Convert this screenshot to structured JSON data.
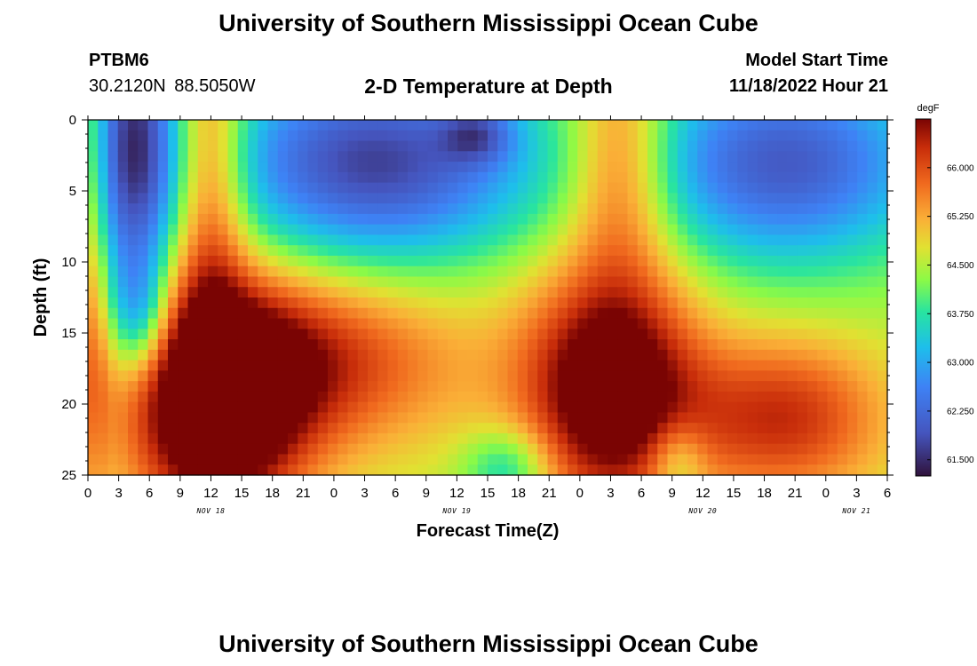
{
  "header": {
    "title": "University of Southern Mississippi Ocean Cube",
    "station": "PTBM6",
    "coords": "30.2120N 88.5050W",
    "subtitle": "2-D Temperature at Depth",
    "model_label": "Model Start Time",
    "model_value": "11/18/2022 Hour 21"
  },
  "footer": {
    "title": "University of Southern Mississippi Ocean Cube"
  },
  "chart_data": {
    "type": "heatmap",
    "title": "2-D Temperature at Depth",
    "xlabel": "Forecast Time(Z)",
    "ylabel": "Depth (ft)",
    "x_tick_labels": [
      "0",
      "3",
      "6",
      "9",
      "12",
      "15",
      "18",
      "21",
      "0",
      "3",
      "6",
      "9",
      "12",
      "15",
      "18",
      "21",
      "0",
      "3",
      "6",
      "9",
      "12",
      "15",
      "18",
      "21",
      "0",
      "3",
      "6"
    ],
    "x_range_hours": [
      0,
      78
    ],
    "x_first_tick_datetime": "2022-11-18 00Z",
    "date_labels": [
      {
        "text": "NOV 18",
        "hour": 12
      },
      {
        "text": "NOV 19",
        "hour": 36
      },
      {
        "text": "NOV 20",
        "hour": 60
      },
      {
        "text": "NOV 21",
        "hour": 75
      }
    ],
    "y_ticks": [
      0,
      5,
      10,
      15,
      20,
      25
    ],
    "y_tick_labels": [
      "0",
      "5",
      "10",
      "15",
      "20",
      "25"
    ],
    "ylim": [
      0,
      25
    ],
    "y_inverted": true,
    "colorbar": {
      "unit": "degF",
      "min": 61.25,
      "max": 66.75,
      "ticks": [
        61.5,
        62.25,
        63.0,
        63.75,
        64.5,
        65.25,
        66.0
      ],
      "tick_labels": [
        "61.500",
        "62.250",
        "63.000",
        "63.750",
        "64.500",
        "65.250",
        "66.000"
      ]
    },
    "field_description": "warm core ~66.5F near 21-22 ft around Nov 18 12Z and Nov 20 03Z; cold (~62.5F) surface waters on Nov 18 and Nov 19-21",
    "field": {
      "base_f": 64.5,
      "features": [
        {
          "hour": 12.5,
          "depth_ft": 20.5,
          "sigma_hours": 6,
          "sigma_ft": 6,
          "amp_f": 3.0
        },
        {
          "hour": 21,
          "depth_ft": 17,
          "sigma_hours": 11,
          "sigma_ft": 4.5,
          "amp_f": 1.8
        },
        {
          "hour": 12,
          "depth_ft": 4,
          "sigma_hours": 2.5,
          "sigma_ft": 8,
          "amp_f": 1.6
        },
        {
          "hour": 4.5,
          "depth_ft": 2,
          "sigma_hours": 3,
          "sigma_ft": 8,
          "amp_f": -2.8
        },
        {
          "hour": 5,
          "depth_ft": 14,
          "sigma_hours": 2,
          "sigma_ft": 3,
          "amp_f": -1.5
        },
        {
          "hour": 28,
          "depth_ft": 3,
          "sigma_hours": 11,
          "sigma_ft": 5,
          "amp_f": -2.8
        },
        {
          "hour": 38,
          "depth_ft": 1,
          "sigma_hours": 2.5,
          "sigma_ft": 1.5,
          "amp_f": -1.2
        },
        {
          "hour": 52,
          "depth_ft": 3,
          "sigma_hours": 3.5,
          "sigma_ft": 6,
          "amp_f": 1.6
        },
        {
          "hour": 51,
          "depth_ft": 19,
          "sigma_hours": 6,
          "sigma_ft": 6,
          "amp_f": 3.0
        },
        {
          "hour": 68,
          "depth_ft": 3,
          "sigma_hours": 10,
          "sigma_ft": 5,
          "amp_f": -2.5
        },
        {
          "hour": 68,
          "depth_ft": 21,
          "sigma_hours": 7,
          "sigma_ft": 4,
          "amp_f": 1.8
        },
        {
          "hour": 41,
          "depth_ft": 24.5,
          "sigma_hours": 3,
          "sigma_ft": 2,
          "amp_f": -1.2
        },
        {
          "hour": 57.5,
          "depth_ft": 24,
          "sigma_hours": 2,
          "sigma_ft": 2,
          "amp_f": -1.0
        },
        {
          "hour": 0.5,
          "depth_ft": 12,
          "sigma_hours": 1.2,
          "sigma_ft": 12,
          "amp_f": 0.9
        }
      ]
    }
  }
}
